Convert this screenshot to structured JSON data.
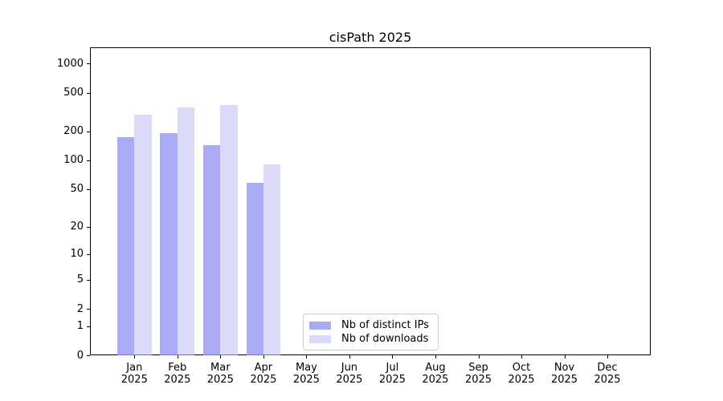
{
  "title": "cisPath 2025",
  "chart_data": {
    "type": "bar",
    "title": "cisPath 2025",
    "categories": [
      "Jan",
      "Feb",
      "Mar",
      "Apr",
      "May",
      "Jun",
      "Jul",
      "Aug",
      "Sep",
      "Oct",
      "Nov",
      "Dec"
    ],
    "category_year_label": "2025",
    "series": [
      {
        "name": "Nb of distinct IPs",
        "color": "#a8aaf4",
        "bar_rgba": "rgba(147,150,241,0.8)",
        "values": [
          175,
          192,
          143,
          58,
          0,
          0,
          0,
          0,
          0,
          0,
          0,
          0
        ]
      },
      {
        "name": "Nb of downloads",
        "color": "#d9daf9",
        "bar_rgba": "rgba(193,194,244,0.6)",
        "values": [
          295,
          350,
          375,
          90,
          0,
          0,
          0,
          0,
          0,
          0,
          0,
          0
        ]
      }
    ],
    "xlabel": "",
    "ylabel": "",
    "y_scale": "log10(1+x)",
    "y_ticks": [
      0,
      1,
      2,
      5,
      10,
      20,
      50,
      100,
      200,
      500,
      1000
    ],
    "y_major_grid_values": [
      1,
      10,
      100,
      1000
    ],
    "ylim": [
      0,
      1400
    ],
    "grid": "both",
    "legend_position": "lower-center-inside",
    "colors": {
      "major_grid": "#c3c3c3",
      "minor_grid": "#eaeaea",
      "spine": "#000000",
      "text": "#000000"
    }
  }
}
